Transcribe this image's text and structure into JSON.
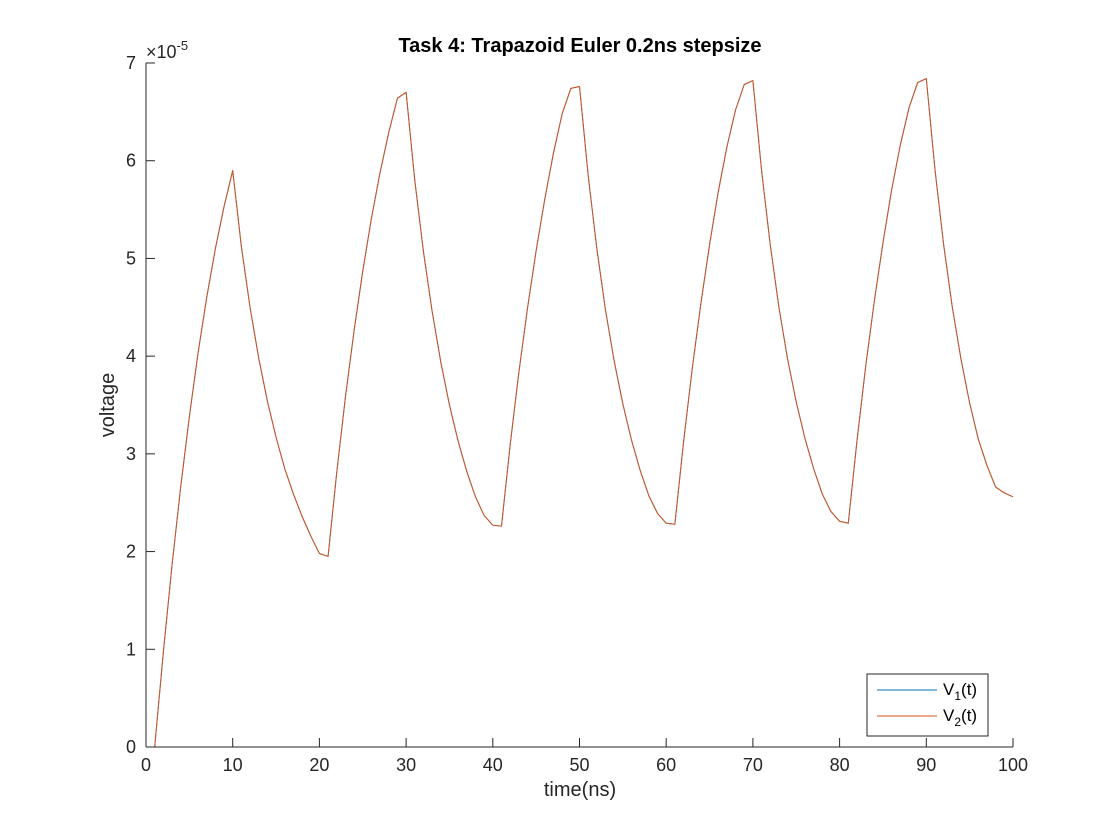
{
  "chart_data": {
    "type": "line",
    "title": "Task 4: Trapazoid Euler 0.2ns stepsize",
    "xlabel": "time(ns)",
    "ylabel": "voltage",
    "xlim": [
      0,
      100
    ],
    "ylim": [
      0,
      7
    ],
    "y_exponent": {
      "base": "×10",
      "power": "-5"
    },
    "x_ticks": [
      0,
      10,
      20,
      30,
      40,
      50,
      60,
      70,
      80,
      90,
      100
    ],
    "y_ticks": [
      0,
      1,
      2,
      3,
      4,
      5,
      6,
      7
    ],
    "grid": false,
    "box": "open-top-right",
    "legend_location": "bottom-right",
    "series": [
      {
        "name": "V",
        "subscript": "1",
        "suffix": "(t)",
        "color": "#0072BD",
        "x": [
          0,
          1,
          2,
          3,
          4,
          5,
          6,
          7,
          8,
          9,
          10,
          11,
          12,
          13,
          14,
          15,
          16,
          17,
          18,
          19,
          20,
          21,
          22,
          23,
          24,
          25,
          26,
          27,
          28,
          29,
          30,
          31,
          32,
          33,
          34,
          35,
          36,
          37,
          38,
          39,
          40,
          41,
          42,
          43,
          44,
          45,
          46,
          47,
          48,
          49,
          50,
          51,
          52,
          53,
          54,
          55,
          56,
          57,
          58,
          59,
          60,
          61,
          62,
          63,
          64,
          65,
          66,
          67,
          68,
          69,
          70,
          71,
          72,
          73,
          74,
          75,
          76,
          77,
          78,
          79,
          80,
          81,
          82,
          83,
          84,
          85,
          86,
          87,
          88,
          89,
          90,
          91,
          92,
          93,
          94,
          95,
          96,
          97,
          98,
          99,
          100
        ],
        "values": [
          0,
          0,
          0.97,
          1.86,
          2.66,
          3.38,
          4.03,
          4.6,
          5.1,
          5.53,
          5.9,
          5.12,
          4.5,
          3.98,
          3.54,
          3.17,
          2.85,
          2.59,
          2.36,
          2.16,
          1.98,
          1.95,
          2.81,
          3.58,
          4.26,
          4.87,
          5.41,
          5.88,
          6.29,
          6.64,
          6.7,
          5.8,
          5.07,
          4.46,
          3.94,
          3.5,
          3.13,
          2.82,
          2.56,
          2.37,
          2.27,
          2.26,
          3.09,
          3.83,
          4.49,
          5.08,
          5.61,
          6.08,
          6.48,
          6.74,
          6.76,
          5.85,
          5.1,
          4.47,
          3.95,
          3.51,
          3.14,
          2.83,
          2.57,
          2.39,
          2.29,
          2.28,
          3.12,
          3.87,
          4.54,
          5.14,
          5.68,
          6.14,
          6.52,
          6.78,
          6.82,
          5.9,
          5.14,
          4.5,
          3.97,
          3.53,
          3.16,
          2.85,
          2.59,
          2.41,
          2.31,
          2.29,
          3.13,
          3.89,
          4.56,
          5.16,
          5.7,
          6.16,
          6.54,
          6.8,
          6.84,
          5.91,
          5.14,
          4.5,
          3.97,
          3.52,
          3.15,
          2.88,
          2.66,
          2.6,
          2.56
        ]
      },
      {
        "name": "V",
        "subscript": "2",
        "suffix": "(t)",
        "color": "#D95319",
        "x": [
          0,
          1,
          2,
          3,
          4,
          5,
          6,
          7,
          8,
          9,
          10,
          11,
          12,
          13,
          14,
          15,
          16,
          17,
          18,
          19,
          20,
          21,
          22,
          23,
          24,
          25,
          26,
          27,
          28,
          29,
          30,
          31,
          32,
          33,
          34,
          35,
          36,
          37,
          38,
          39,
          40,
          41,
          42,
          43,
          44,
          45,
          46,
          47,
          48,
          49,
          50,
          51,
          52,
          53,
          54,
          55,
          56,
          57,
          58,
          59,
          60,
          61,
          62,
          63,
          64,
          65,
          66,
          67,
          68,
          69,
          70,
          71,
          72,
          73,
          74,
          75,
          76,
          77,
          78,
          79,
          80,
          81,
          82,
          83,
          84,
          85,
          86,
          87,
          88,
          89,
          90,
          91,
          92,
          93,
          94,
          95,
          96,
          97,
          98,
          99,
          100
        ],
        "values": [
          0,
          0,
          0.97,
          1.86,
          2.66,
          3.38,
          4.03,
          4.6,
          5.1,
          5.53,
          5.9,
          5.12,
          4.5,
          3.98,
          3.54,
          3.17,
          2.85,
          2.59,
          2.36,
          2.16,
          1.98,
          1.95,
          2.81,
          3.58,
          4.26,
          4.87,
          5.41,
          5.88,
          6.29,
          6.64,
          6.7,
          5.8,
          5.07,
          4.46,
          3.94,
          3.5,
          3.13,
          2.82,
          2.56,
          2.37,
          2.27,
          2.26,
          3.09,
          3.83,
          4.49,
          5.08,
          5.61,
          6.08,
          6.48,
          6.74,
          6.76,
          5.85,
          5.1,
          4.47,
          3.95,
          3.51,
          3.14,
          2.83,
          2.57,
          2.39,
          2.29,
          2.28,
          3.12,
          3.87,
          4.54,
          5.14,
          5.68,
          6.14,
          6.52,
          6.78,
          6.82,
          5.9,
          5.14,
          4.5,
          3.97,
          3.53,
          3.16,
          2.85,
          2.59,
          2.41,
          2.31,
          2.29,
          3.13,
          3.89,
          4.56,
          5.16,
          5.7,
          6.16,
          6.54,
          6.8,
          6.84,
          5.91,
          5.14,
          4.5,
          3.97,
          3.52,
          3.15,
          2.88,
          2.66,
          2.6,
          2.56
        ]
      }
    ]
  }
}
